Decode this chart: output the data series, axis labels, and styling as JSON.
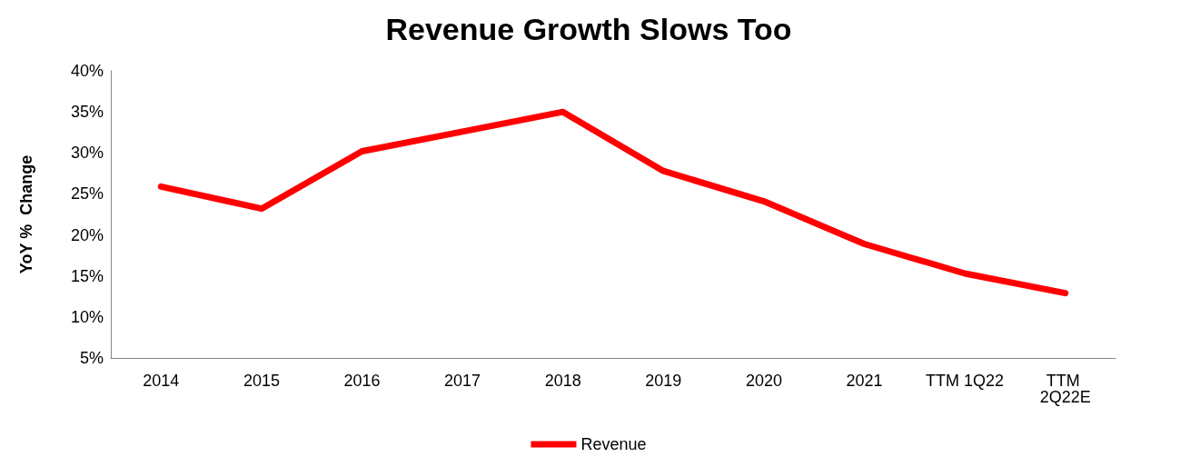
{
  "chart_data": {
    "type": "line",
    "title": "Revenue Growth Slows Too",
    "ylabel": "YoY %  Change",
    "categories": [
      "2014",
      "2015",
      "2016",
      "2017",
      "2018",
      "2019",
      "2020",
      "2021",
      "TTM 1Q22",
      "TTM 2Q22E"
    ],
    "series": [
      {
        "name": "Revenue",
        "color": "#ff0000",
        "values": [
          25.9,
          23.2,
          30.2,
          32.6,
          35,
          27.8,
          24.1,
          18.9,
          15.3,
          12.9
        ]
      }
    ],
    "ylim": [
      5,
      40
    ],
    "yticks": [
      {
        "value": 5,
        "label": "5%"
      },
      {
        "value": 10,
        "label": "10%"
      },
      {
        "value": 15,
        "label": "15%"
      },
      {
        "value": 20,
        "label": "20%"
      },
      {
        "value": 25,
        "label": "25%"
      },
      {
        "value": 30,
        "label": "30%"
      },
      {
        "value": 35,
        "label": "35%"
      },
      {
        "value": 40,
        "label": "40%"
      }
    ],
    "grid": false,
    "legend": "bottom",
    "marker": "none",
    "line_style": "solid"
  }
}
